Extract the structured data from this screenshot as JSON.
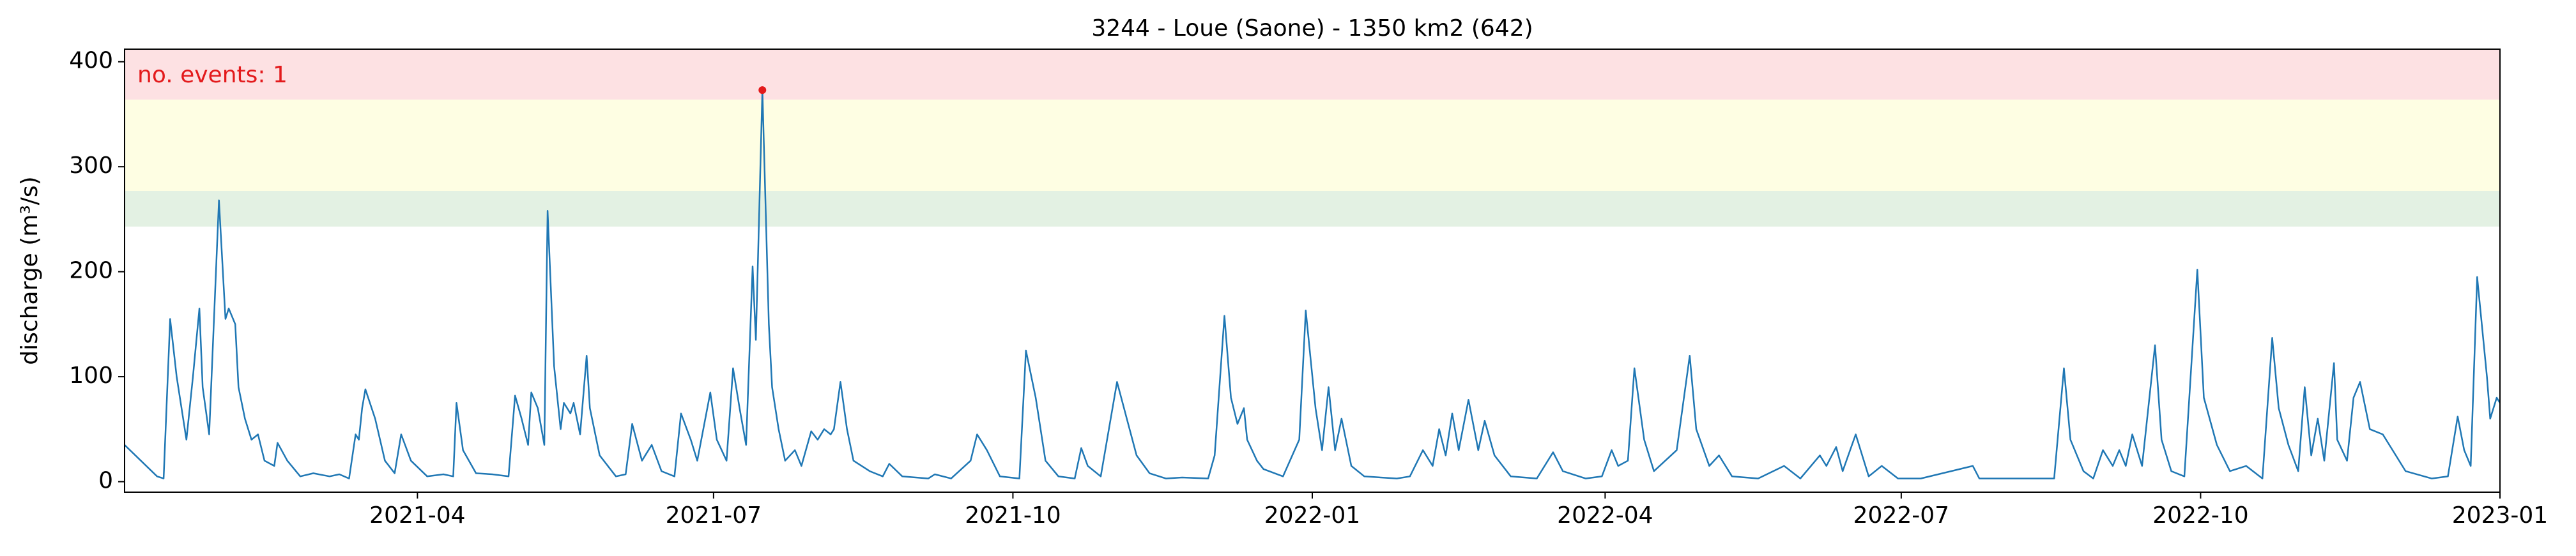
{
  "chart_data": {
    "type": "line",
    "title": "3244 - Loue (Saone) - 1350 km2 (642)",
    "y_label": "discharge (m³/s)",
    "annotation": "no. events: 1",
    "xlim": [
      0,
      730
    ],
    "xticks": [
      {
        "value": 90,
        "label": "2021-04"
      },
      {
        "value": 181,
        "label": "2021-07"
      },
      {
        "value": 273,
        "label": "2021-10"
      },
      {
        "value": 365,
        "label": "2022-01"
      },
      {
        "value": 455,
        "label": "2022-04"
      },
      {
        "value": 546,
        "label": "2022-07"
      },
      {
        "value": 638,
        "label": "2022-10"
      },
      {
        "value": 730,
        "label": "2023-01"
      }
    ],
    "ylim": [
      -10,
      412
    ],
    "yticks": [
      0,
      100,
      200,
      300,
      400
    ],
    "bands": [
      {
        "from": 243,
        "to": 277,
        "color": "#e3f1e3"
      },
      {
        "from": 277,
        "to": 364,
        "color": "#fefee3"
      },
      {
        "from": 364,
        "to": 412,
        "color": "#fde1e3"
      }
    ],
    "x": [
      0,
      10,
      12,
      14,
      16,
      19,
      21,
      23,
      24,
      26,
      29,
      31,
      32,
      34,
      35,
      37,
      39,
      41,
      43,
      46,
      47,
      50,
      54,
      58,
      63,
      66,
      69,
      71,
      72,
      73,
      74,
      77,
      80,
      83,
      85,
      88,
      93,
      98,
      101,
      102,
      104,
      108,
      113,
      118,
      120,
      122,
      124,
      125,
      127,
      129,
      130,
      132,
      134,
      135,
      137,
      138,
      140,
      142,
      143,
      146,
      151,
      154,
      156,
      159,
      162,
      165,
      169,
      171,
      174,
      176,
      180,
      182,
      185,
      187,
      189,
      191,
      193,
      194,
      196,
      198,
      199,
      201,
      203,
      206,
      208,
      211,
      213,
      215,
      217,
      218,
      220,
      222,
      224,
      229,
      233,
      235,
      239,
      247,
      249,
      254,
      260,
      262,
      265,
      269,
      275,
      277,
      280,
      283,
      287,
      292,
      294,
      296,
      300,
      305,
      308,
      311,
      315,
      320,
      325,
      333,
      335,
      338,
      340,
      342,
      344,
      345,
      348,
      350,
      356,
      361,
      363,
      366,
      368,
      370,
      372,
      374,
      377,
      381,
      391,
      395,
      399,
      402,
      404,
      406,
      408,
      410,
      413,
      416,
      418,
      421,
      426,
      434,
      439,
      442,
      449,
      454,
      457,
      459,
      462,
      464,
      467,
      470,
      477,
      481,
      483,
      487,
      490,
      494,
      502,
      510,
      515,
      521,
      523,
      526,
      528,
      532,
      536,
      540,
      545,
      552,
      568,
      570,
      593,
      596,
      598,
      602,
      605,
      608,
      611,
      613,
      615,
      617,
      620,
      624,
      626,
      629,
      633,
      637,
      639,
      643,
      647,
      652,
      657,
      660,
      662,
      665,
      668,
      670,
      672,
      674,
      676,
      679,
      680,
      683,
      685,
      687,
      690,
      694,
      698,
      701,
      709,
      714,
      717,
      719,
      721,
      723,
      726,
      727,
      729,
      730
    ],
    "series": [
      {
        "color": "#1f77b4",
        "values": [
          35,
          5,
          3,
          155,
          100,
          40,
          100,
          165,
          90,
          45,
          268,
          155,
          165,
          150,
          90,
          60,
          40,
          45,
          20,
          15,
          37,
          20,
          5,
          8,
          5,
          7,
          3,
          45,
          40,
          70,
          88,
          60,
          20,
          8,
          45,
          20,
          5,
          7,
          5,
          75,
          30,
          8,
          7,
          5,
          82,
          60,
          35,
          85,
          70,
          35,
          258,
          110,
          50,
          75,
          65,
          75,
          45,
          120,
          70,
          25,
          5,
          7,
          55,
          20,
          35,
          10,
          5,
          65,
          40,
          20,
          85,
          40,
          20,
          108,
          70,
          35,
          205,
          135,
          373,
          150,
          90,
          50,
          20,
          30,
          15,
          48,
          40,
          50,
          45,
          50,
          95,
          50,
          20,
          10,
          5,
          17,
          5,
          3,
          7,
          3,
          20,
          45,
          30,
          5,
          3,
          125,
          80,
          20,
          5,
          3,
          32,
          15,
          5,
          95,
          60,
          25,
          8,
          3,
          4,
          3,
          25,
          158,
          80,
          55,
          70,
          40,
          20,
          12,
          5,
          40,
          163,
          70,
          30,
          90,
          30,
          60,
          15,
          5,
          3,
          5,
          30,
          15,
          50,
          25,
          65,
          30,
          78,
          30,
          58,
          25,
          5,
          3,
          28,
          10,
          3,
          5,
          30,
          15,
          20,
          108,
          40,
          10,
          30,
          120,
          50,
          15,
          25,
          5,
          3,
          15,
          3,
          25,
          15,
          33,
          10,
          45,
          5,
          15,
          3,
          3,
          15,
          3,
          3,
          108,
          40,
          10,
          3,
          30,
          15,
          30,
          15,
          45,
          15,
          130,
          40,
          10,
          5,
          202,
          80,
          35,
          10,
          15,
          3,
          137,
          70,
          35,
          10,
          90,
          25,
          60,
          20,
          113,
          40,
          20,
          80,
          95,
          50,
          45,
          25,
          10,
          3,
          5,
          62,
          30,
          15,
          195,
          100,
          60,
          80,
          75
        ]
      }
    ],
    "events": {
      "color": "#e31a1c",
      "x": [
        196
      ],
      "values": [
        373
      ]
    }
  }
}
